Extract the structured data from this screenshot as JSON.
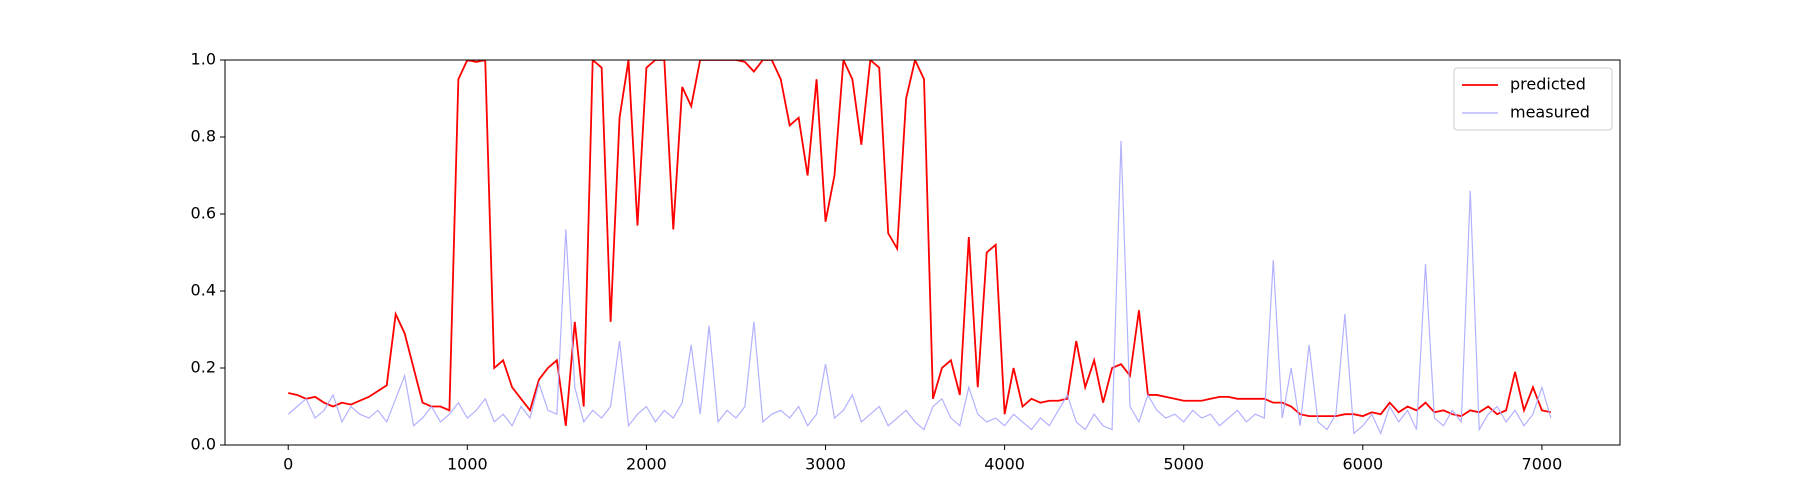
{
  "chart_data": {
    "type": "line",
    "x": [
      0,
      50,
      100,
      150,
      200,
      250,
      300,
      350,
      400,
      450,
      500,
      550,
      600,
      650,
      700,
      750,
      800,
      850,
      900,
      950,
      1000,
      1050,
      1100,
      1150,
      1200,
      1250,
      1300,
      1350,
      1400,
      1450,
      1500,
      1550,
      1600,
      1650,
      1700,
      1750,
      1800,
      1850,
      1900,
      1950,
      2000,
      2050,
      2100,
      2150,
      2200,
      2250,
      2300,
      2350,
      2400,
      2450,
      2500,
      2550,
      2600,
      2650,
      2700,
      2750,
      2800,
      2850,
      2900,
      2950,
      3000,
      3050,
      3100,
      3150,
      3200,
      3250,
      3300,
      3350,
      3400,
      3450,
      3500,
      3550,
      3600,
      3650,
      3700,
      3750,
      3800,
      3850,
      3900,
      3950,
      4000,
      4050,
      4100,
      4150,
      4200,
      4250,
      4300,
      4350,
      4400,
      4450,
      4500,
      4550,
      4600,
      4650,
      4700,
      4750,
      4800,
      4850,
      4900,
      4950,
      5000,
      5050,
      5100,
      5150,
      5200,
      5250,
      5300,
      5350,
      5400,
      5450,
      5500,
      5550,
      5600,
      5650,
      5700,
      5750,
      5800,
      5850,
      5900,
      5950,
      6000,
      6050,
      6100,
      6150,
      6200,
      6250,
      6300,
      6350,
      6400,
      6450,
      6500,
      6550,
      6600,
      6650,
      6700,
      6750,
      6800,
      6850,
      6900,
      6950,
      7000,
      7050
    ],
    "series": [
      {
        "name": "predicted",
        "color": "#ff0000",
        "values": [
          0.135,
          0.13,
          0.12,
          0.125,
          0.11,
          0.1,
          0.11,
          0.105,
          0.115,
          0.125,
          0.14,
          0.155,
          0.34,
          0.29,
          0.2,
          0.11,
          0.1,
          0.1,
          0.09,
          0.95,
          1.0,
          0.995,
          1.0,
          0.2,
          0.22,
          0.15,
          0.12,
          0.09,
          0.17,
          0.2,
          0.22,
          0.05,
          0.32,
          0.1,
          1.0,
          0.98,
          0.32,
          0.85,
          1.0,
          0.57,
          0.98,
          1.0,
          1.0,
          0.56,
          0.93,
          0.88,
          1.0,
          1.0,
          1.0,
          1.0,
          1.0,
          0.995,
          0.97,
          1.0,
          1.0,
          0.95,
          0.83,
          0.85,
          0.7,
          0.95,
          0.58,
          0.7,
          1.0,
          0.95,
          0.78,
          1.0,
          0.98,
          0.55,
          0.51,
          0.9,
          1.0,
          0.95,
          0.12,
          0.2,
          0.22,
          0.13,
          0.54,
          0.15,
          0.5,
          0.52,
          0.08,
          0.2,
          0.1,
          0.12,
          0.11,
          0.115,
          0.115,
          0.12,
          0.27,
          0.15,
          0.22,
          0.11,
          0.2,
          0.21,
          0.18,
          0.35,
          0.13,
          0.13,
          0.125,
          0.12,
          0.115,
          0.115,
          0.115,
          0.12,
          0.125,
          0.125,
          0.12,
          0.12,
          0.12,
          0.12,
          0.11,
          0.11,
          0.1,
          0.08,
          0.075,
          0.075,
          0.075,
          0.075,
          0.08,
          0.08,
          0.075,
          0.085,
          0.08,
          0.11,
          0.085,
          0.1,
          0.09,
          0.11,
          0.085,
          0.09,
          0.08,
          0.075,
          0.09,
          0.085,
          0.1,
          0.08,
          0.09,
          0.19,
          0.09,
          0.15,
          0.09,
          0.085
        ]
      },
      {
        "name": "measured",
        "color": "#aaaaff",
        "values": [
          0.08,
          0.1,
          0.12,
          0.07,
          0.09,
          0.13,
          0.06,
          0.1,
          0.08,
          0.07,
          0.09,
          0.06,
          0.12,
          0.18,
          0.05,
          0.07,
          0.1,
          0.06,
          0.08,
          0.11,
          0.07,
          0.09,
          0.12,
          0.06,
          0.08,
          0.05,
          0.1,
          0.07,
          0.16,
          0.09,
          0.08,
          0.56,
          0.15,
          0.06,
          0.09,
          0.07,
          0.1,
          0.27,
          0.05,
          0.08,
          0.1,
          0.06,
          0.09,
          0.07,
          0.11,
          0.26,
          0.08,
          0.31,
          0.06,
          0.09,
          0.07,
          0.1,
          0.32,
          0.06,
          0.08,
          0.09,
          0.07,
          0.1,
          0.05,
          0.08,
          0.21,
          0.07,
          0.09,
          0.13,
          0.06,
          0.08,
          0.1,
          0.05,
          0.07,
          0.09,
          0.06,
          0.04,
          0.1,
          0.12,
          0.07,
          0.05,
          0.15,
          0.08,
          0.06,
          0.07,
          0.05,
          0.08,
          0.06,
          0.04,
          0.07,
          0.05,
          0.09,
          0.13,
          0.06,
          0.04,
          0.08,
          0.05,
          0.04,
          0.79,
          0.1,
          0.06,
          0.13,
          0.09,
          0.07,
          0.08,
          0.06,
          0.09,
          0.07,
          0.08,
          0.05,
          0.07,
          0.09,
          0.06,
          0.08,
          0.07,
          0.48,
          0.07,
          0.2,
          0.05,
          0.26,
          0.06,
          0.04,
          0.08,
          0.34,
          0.03,
          0.05,
          0.08,
          0.03,
          0.1,
          0.06,
          0.09,
          0.04,
          0.47,
          0.07,
          0.05,
          0.09,
          0.06,
          0.66,
          0.04,
          0.08,
          0.1,
          0.06,
          0.09,
          0.05,
          0.08,
          0.15,
          0.07
        ]
      }
    ],
    "xlim": [
      -353,
      7436
    ],
    "ylim": [
      0,
      1
    ],
    "xticks": [
      0,
      1000,
      2000,
      3000,
      4000,
      5000,
      6000,
      7000
    ],
    "yticks": [
      {
        "value": 0,
        "label": "0.0"
      },
      {
        "value": 0.2,
        "label": "0.2"
      },
      {
        "value": 0.4,
        "label": "0.4"
      },
      {
        "value": 0.6,
        "label": "0.6"
      },
      {
        "value": 0.8,
        "label": "0.8"
      },
      {
        "value": 1,
        "label": "1.0"
      }
    ],
    "legend": "upper right"
  }
}
